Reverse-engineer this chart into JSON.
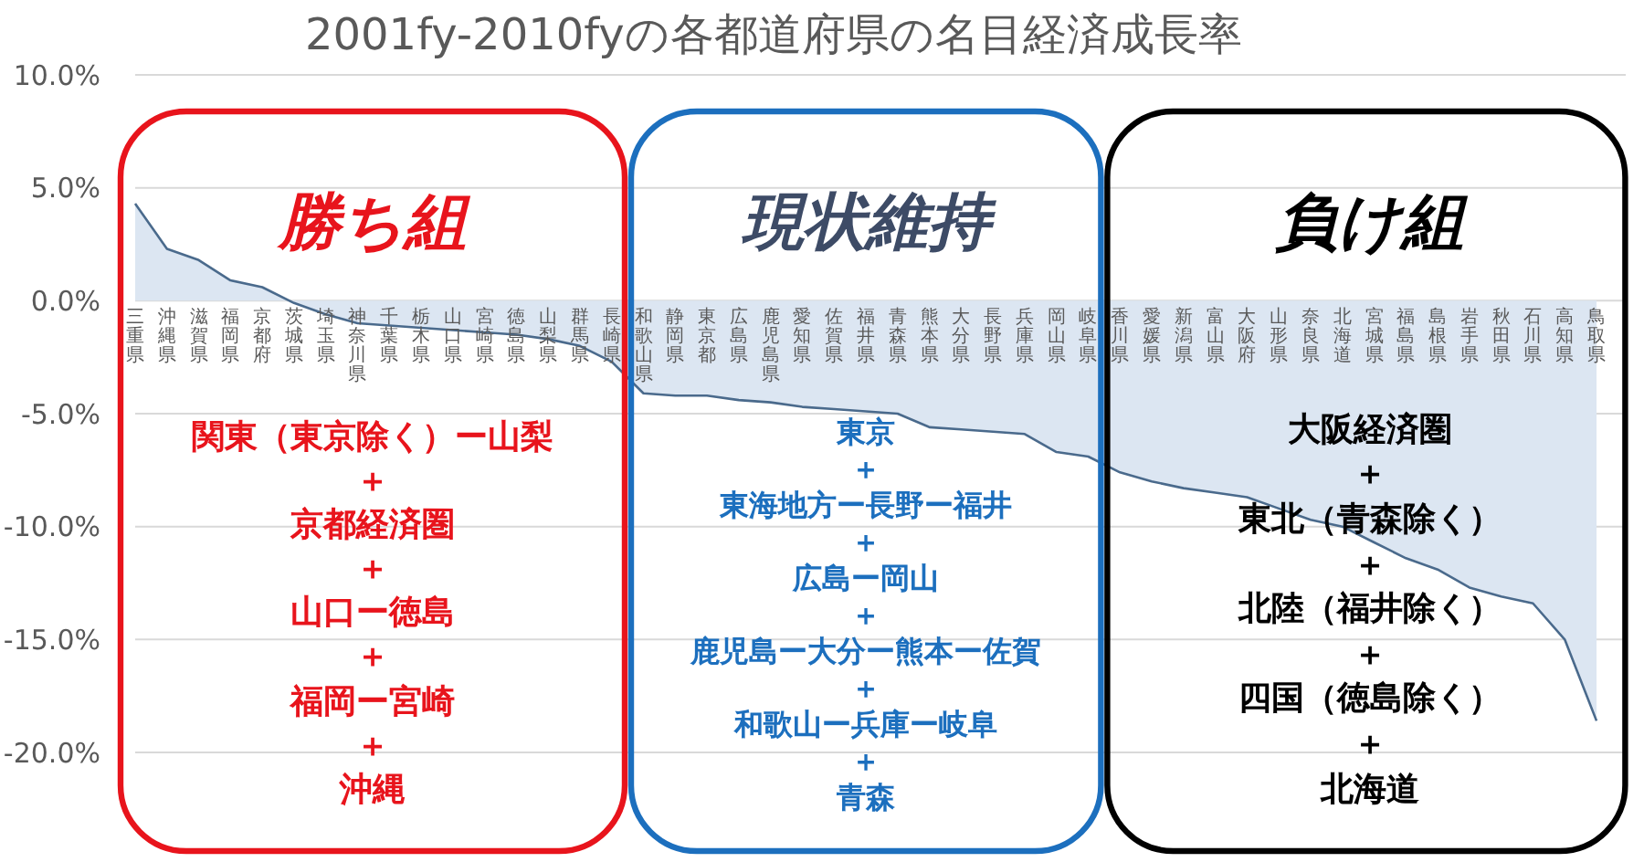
{
  "chart_data": {
    "type": "area",
    "title": "2001fy-2010fyの各都道府県の名目経済成長率",
    "categories": [
      "三重県",
      "沖縄県",
      "滋賀県",
      "福岡県",
      "京都府",
      "茨城県",
      "埼玉県",
      "神奈川県",
      "千葉県",
      "栃木県",
      "山口県",
      "宮崎県",
      "徳島県",
      "山梨県",
      "群馬県",
      "長崎県",
      "和歌山県",
      "静岡県",
      "東京都",
      "広島県",
      "鹿児島県",
      "愛知県",
      "佐賀県",
      "福井県",
      "青森県",
      "熊本県",
      "大分県",
      "長野県",
      "兵庫県",
      "岡山県",
      "岐阜県",
      "香川県",
      "愛媛県",
      "新潟県",
      "富山県",
      "大阪府",
      "山形県",
      "奈良県",
      "北海道",
      "宮城県",
      "福島県",
      "島根県",
      "岩手県",
      "秋田県",
      "石川県",
      "高知県",
      "鳥取県"
    ],
    "values": [
      4.3,
      2.3,
      1.8,
      0.9,
      0.6,
      -0.1,
      -0.6,
      -1.0,
      -1.1,
      -1.2,
      -1.3,
      -1.4,
      -1.5,
      -1.7,
      -2.0,
      -2.7,
      -4.1,
      -4.2,
      -4.2,
      -4.4,
      -4.5,
      -4.7,
      -4.8,
      -4.9,
      -5.0,
      -5.6,
      -5.7,
      -5.8,
      -5.9,
      -6.7,
      -6.9,
      -7.6,
      -8.0,
      -8.3,
      -8.5,
      -8.7,
      -9.2,
      -9.7,
      -10.0,
      -10.7,
      -11.4,
      -11.9,
      -12.7,
      -13.1,
      -13.4,
      -15.0,
      -18.6
    ],
    "color": "#dce6f2",
    "ylim": [
      -20,
      10
    ],
    "yticks": [
      {
        "value": -20,
        "label": "-20.0%"
      },
      {
        "value": -15,
        "label": "-15.0%"
      },
      {
        "value": -10,
        "label": "-10.0%"
      },
      {
        "value": -5,
        "label": "-5.0%"
      },
      {
        "value": 0,
        "label": "0.0%"
      },
      {
        "value": 5,
        "label": "5.0%"
      },
      {
        "value": 10,
        "label": "10.0%"
      }
    ],
    "grid": "y",
    "annotations": [
      "勝ち組",
      "関東（東京除く）ー山梨",
      "＋",
      "京都経済圏",
      "＋",
      "山口ー徳島",
      "＋",
      "福岡ー宮崎",
      "＋",
      "沖縄",
      "現状維持",
      "東京",
      "＋",
      "東海地方ー長野ー福井",
      "＋",
      "広島ー岡山",
      "＋",
      "鹿児島ー大分ー熊本ー佐賀",
      "＋",
      "和歌山ー兵庫ー岐阜",
      "＋",
      "青森",
      "負け組",
      "大阪経済圏",
      "＋",
      "東北（青森除く）",
      "＋",
      "北陸（福井除く）",
      "＋",
      "四国（徳島除く）",
      "＋",
      "北海道"
    ]
  }
}
